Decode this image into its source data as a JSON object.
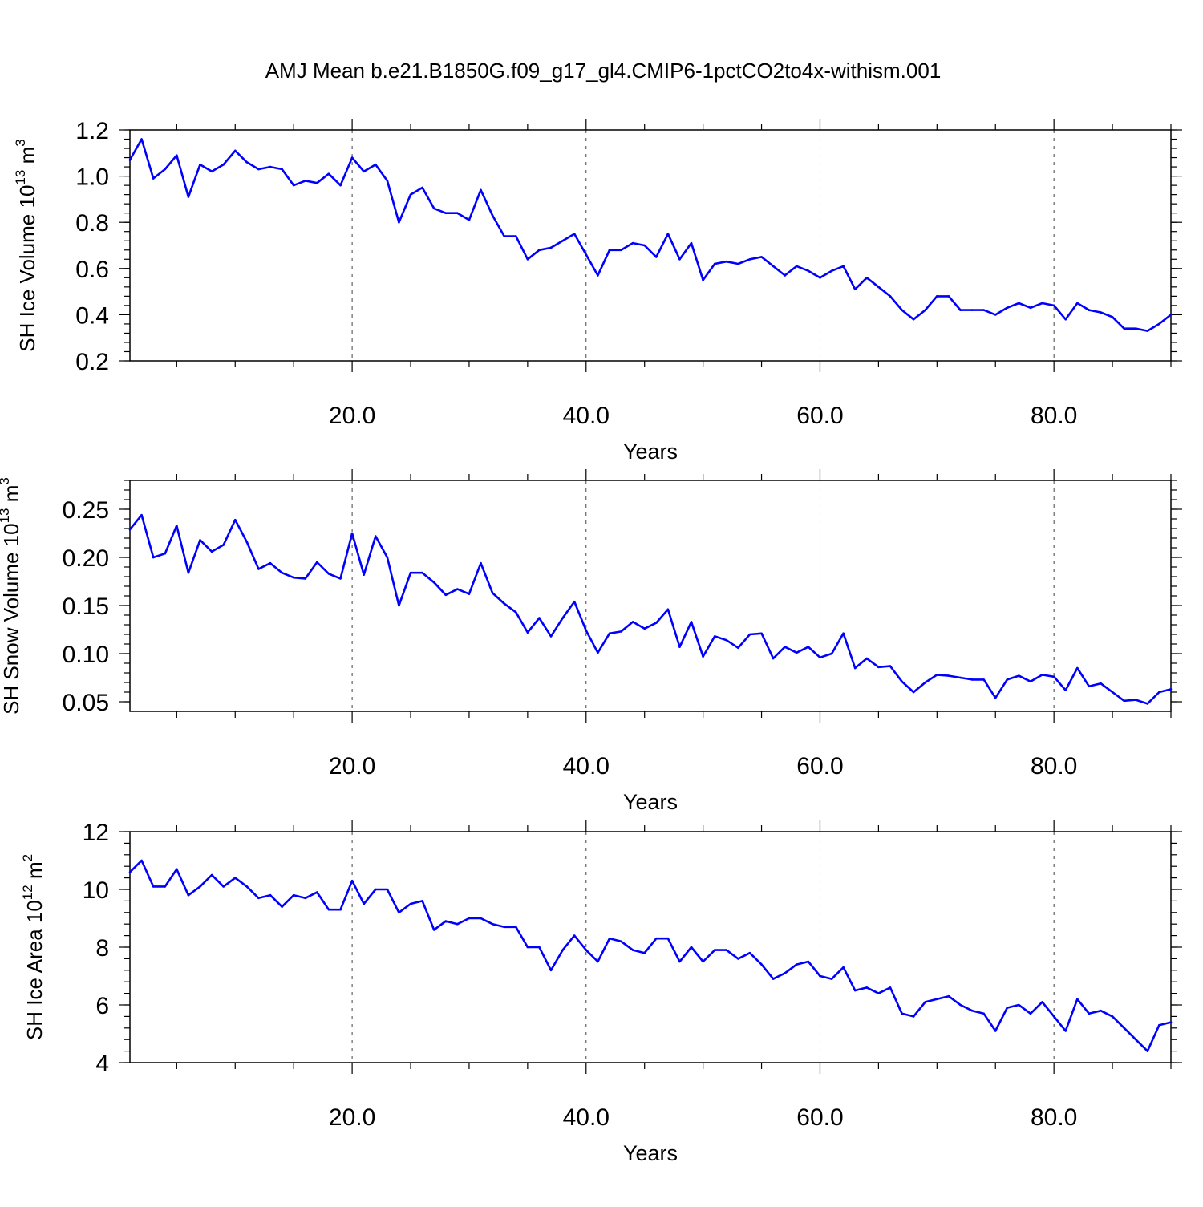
{
  "title": "AMJ Mean b.e21.B1850G.f09_g17_gl4.CMIP6-1pctCO2to4x-withism.001",
  "colors": {
    "line": "#0000ff",
    "axis": "#000000",
    "grid": "#444444"
  },
  "chart_data": [
    {
      "type": "line",
      "xlabel": "Years",
      "ylabel": {
        "prefix": "SH Ice Volume 10",
        "exponent": "13",
        "unit": " m",
        "unit_exponent": "3"
      },
      "xlim": [
        1,
        90
      ],
      "ylim": [
        0.2,
        1.2
      ],
      "x_ticks": [
        "20.0",
        "40.0",
        "60.0",
        "80.0"
      ],
      "y_ticks": [
        "0.2",
        "0.4",
        "0.6",
        "0.8",
        "1.0",
        "1.2"
      ],
      "grid": "dashed vertical at major x ticks",
      "x_start": 1,
      "values": [
        1.07,
        1.16,
        0.99,
        1.03,
        1.09,
        0.91,
        1.05,
        1.02,
        1.05,
        1.11,
        1.06,
        1.03,
        1.04,
        1.03,
        0.96,
        0.98,
        0.97,
        1.01,
        0.96,
        1.08,
        1.02,
        1.05,
        0.98,
        0.8,
        0.92,
        0.95,
        0.86,
        0.84,
        0.84,
        0.81,
        0.94,
        0.83,
        0.74,
        0.74,
        0.64,
        0.68,
        0.69,
        0.72,
        0.75,
        0.66,
        0.57,
        0.68,
        0.68,
        0.71,
        0.7,
        0.65,
        0.75,
        0.64,
        0.71,
        0.55,
        0.62,
        0.63,
        0.62,
        0.64,
        0.65,
        0.61,
        0.57,
        0.61,
        0.59,
        0.56,
        0.59,
        0.61,
        0.51,
        0.56,
        0.52,
        0.48,
        0.42,
        0.38,
        0.42,
        0.48,
        0.48,
        0.42,
        0.42,
        0.42,
        0.4,
        0.43,
        0.45,
        0.43,
        0.45,
        0.44,
        0.38,
        0.45,
        0.42,
        0.41,
        0.39,
        0.34,
        0.34,
        0.33,
        0.36,
        0.4
      ]
    },
    {
      "type": "line",
      "xlabel": "Years",
      "ylabel": {
        "prefix": "SH Snow Volume 10",
        "exponent": "13",
        "unit": " m",
        "unit_exponent": "3"
      },
      "xlim": [
        1,
        90
      ],
      "ylim": [
        0.04,
        0.28
      ],
      "x_ticks": [
        "20.0",
        "40.0",
        "60.0",
        "80.0"
      ],
      "y_ticks": [
        "0.05",
        "0.10",
        "0.15",
        "0.20",
        "0.25"
      ],
      "grid": "dashed vertical at major x ticks",
      "x_start": 1,
      "values": [
        0.229,
        0.244,
        0.2,
        0.204,
        0.233,
        0.184,
        0.218,
        0.206,
        0.213,
        0.239,
        0.216,
        0.188,
        0.194,
        0.184,
        0.179,
        0.178,
        0.195,
        0.183,
        0.178,
        0.225,
        0.182,
        0.222,
        0.2,
        0.15,
        0.184,
        0.184,
        0.174,
        0.161,
        0.167,
        0.162,
        0.194,
        0.163,
        0.152,
        0.143,
        0.122,
        0.137,
        0.118,
        0.137,
        0.154,
        0.124,
        0.101,
        0.121,
        0.123,
        0.133,
        0.126,
        0.132,
        0.146,
        0.107,
        0.133,
        0.097,
        0.118,
        0.114,
        0.106,
        0.12,
        0.121,
        0.095,
        0.107,
        0.101,
        0.107,
        0.096,
        0.1,
        0.121,
        0.085,
        0.095,
        0.086,
        0.087,
        0.071,
        0.06,
        0.07,
        0.078,
        0.077,
        0.075,
        0.073,
        0.073,
        0.054,
        0.073,
        0.077,
        0.071,
        0.078,
        0.076,
        0.062,
        0.085,
        0.066,
        0.069,
        0.06,
        0.051,
        0.052,
        0.048,
        0.06,
        0.063
      ]
    },
    {
      "type": "line",
      "xlabel": "Years",
      "ylabel": {
        "prefix": "SH Ice Area 10",
        "exponent": "12",
        "unit": " m",
        "unit_exponent": "2"
      },
      "xlim": [
        1,
        90
      ],
      "ylim": [
        4,
        12
      ],
      "x_ticks": [
        "20.0",
        "40.0",
        "60.0",
        "80.0"
      ],
      "y_ticks": [
        "4",
        "6",
        "8",
        "10",
        "12"
      ],
      "grid": "dashed vertical at major x ticks",
      "x_start": 1,
      "values": [
        10.6,
        11.0,
        10.1,
        10.1,
        10.7,
        9.8,
        10.1,
        10.5,
        10.1,
        10.4,
        10.1,
        9.7,
        9.8,
        9.4,
        9.8,
        9.7,
        9.9,
        9.3,
        9.3,
        10.3,
        9.5,
        10.0,
        10.0,
        9.2,
        9.5,
        9.6,
        8.6,
        8.9,
        8.8,
        9.0,
        9.0,
        8.8,
        8.7,
        8.7,
        8.0,
        8.0,
        7.2,
        7.9,
        8.4,
        7.9,
        7.5,
        8.3,
        8.2,
        7.9,
        7.8,
        8.3,
        8.3,
        7.5,
        8.0,
        7.5,
        7.9,
        7.9,
        7.6,
        7.8,
        7.4,
        6.9,
        7.1,
        7.4,
        7.5,
        7.0,
        6.9,
        7.3,
        6.5,
        6.6,
        6.4,
        6.6,
        5.7,
        5.6,
        6.1,
        6.2,
        6.3,
        6.0,
        5.8,
        5.7,
        5.1,
        5.9,
        6.0,
        5.7,
        6.1,
        5.6,
        5.1,
        6.2,
        5.7,
        5.8,
        5.6,
        5.2,
        4.8,
        4.4,
        5.3,
        5.4
      ]
    }
  ]
}
